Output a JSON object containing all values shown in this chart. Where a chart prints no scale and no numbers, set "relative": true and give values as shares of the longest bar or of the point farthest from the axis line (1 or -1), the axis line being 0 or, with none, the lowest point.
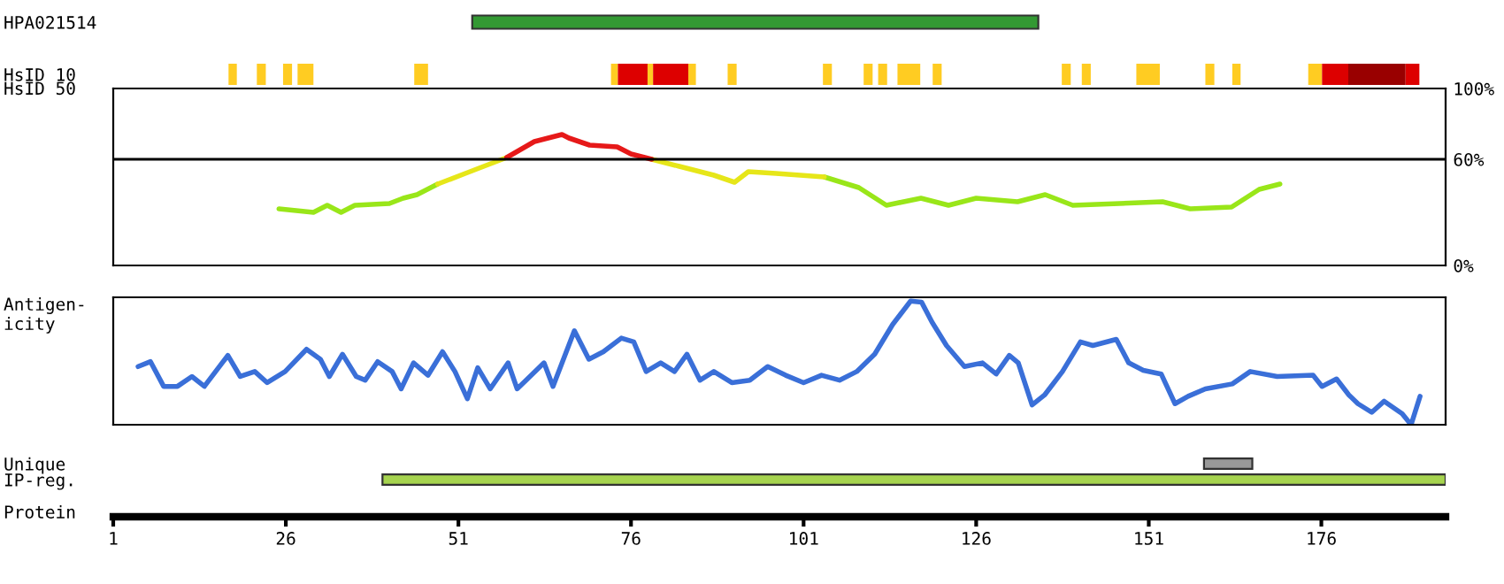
{
  "chart_data": [
    {
      "type": "bar",
      "orientation": "horizontal",
      "categories": [
        "HPA021514"
      ],
      "base": [
        53
      ],
      "values": [
        82
      ],
      "colors": [
        "#339933"
      ],
      "xlim": [
        1,
        194
      ],
      "tick_labels": "y"
    },
    {
      "type": "bar",
      "orientation": "horizontal",
      "categories": [
        "HsID 10"
      ],
      "xlim": [
        1,
        194
      ],
      "tick_labels": "y",
      "series": [
        {
          "color": "#ffcc22",
          "base": [
            17.7
          ],
          "values": [
            1.2
          ]
        },
        {
          "color": "#ffcc22",
          "base": [
            21.8
          ],
          "values": [
            1.3
          ]
        },
        {
          "color": "#ffcc22",
          "base": [
            25.6
          ],
          "values": [
            1.3
          ]
        },
        {
          "color": "#ffcc22",
          "base": [
            27.7
          ],
          "values": [
            2.3
          ]
        },
        {
          "color": "#ffcc22",
          "base": [
            44.6
          ],
          "values": [
            2.0
          ]
        },
        {
          "color": "#ffcc22",
          "base": [
            73.1
          ],
          "values": [
            1.0
          ]
        },
        {
          "color": "#dd0000",
          "base": [
            74.1
          ],
          "values": [
            4.3
          ]
        },
        {
          "color": "#ffcc22",
          "base": [
            78.4
          ],
          "values": [
            0.8
          ]
        },
        {
          "color": "#dd0000",
          "base": [
            79.2
          ],
          "values": [
            5.1
          ]
        },
        {
          "color": "#ffcc22",
          "base": [
            84.3
          ],
          "values": [
            1.1
          ]
        },
        {
          "color": "#ffcc22",
          "base": [
            90.0
          ],
          "values": [
            1.3
          ]
        },
        {
          "color": "#ffcc22",
          "base": [
            103.8
          ],
          "values": [
            1.3
          ]
        },
        {
          "color": "#ffcc22",
          "base": [
            109.7
          ],
          "values": [
            1.3
          ]
        },
        {
          "color": "#ffcc22",
          "base": [
            111.8
          ],
          "values": [
            1.3
          ]
        },
        {
          "color": "#ffcc22",
          "base": [
            114.6
          ],
          "values": [
            3.3
          ]
        },
        {
          "color": "#ffcc22",
          "base": [
            119.7
          ],
          "values": [
            1.3
          ]
        },
        {
          "color": "#ffcc22",
          "base": [
            138.4
          ],
          "values": [
            1.3
          ]
        },
        {
          "color": "#ffcc22",
          "base": [
            141.3
          ],
          "values": [
            1.3
          ]
        },
        {
          "color": "#ffcc22",
          "base": [
            149.2
          ],
          "values": [
            3.4
          ]
        },
        {
          "color": "#ffcc22",
          "base": [
            159.2
          ],
          "values": [
            1.3
          ]
        },
        {
          "color": "#ffcc22",
          "base": [
            163.1
          ],
          "values": [
            1.2
          ]
        },
        {
          "color": "#ffcc22",
          "base": [
            174.1
          ],
          "values": [
            2.0
          ]
        },
        {
          "color": "#dd0000",
          "base": [
            176.1
          ],
          "values": [
            3.8
          ]
        },
        {
          "color": "#990000",
          "base": [
            179.9
          ],
          "values": [
            8.3
          ]
        },
        {
          "color": "#dd0000",
          "base": [
            188.2
          ],
          "values": [
            2.0
          ]
        }
      ]
    },
    {
      "type": "line",
      "ylabel": "HsID 50",
      "xlim": [
        1,
        194
      ],
      "ylim": [
        0,
        100
      ],
      "yticks": [
        {
          "value": 0,
          "label": "0%"
        },
        {
          "value": 60,
          "label": "60%"
        },
        {
          "value": 100,
          "label": "100%"
        }
      ],
      "tick_labels": "y",
      "ref_lines": [
        {
          "axis": "y",
          "value": 60,
          "color": "#000000"
        }
      ],
      "x": [
        25,
        30,
        32,
        34,
        36,
        41,
        43,
        45,
        48,
        52,
        56,
        58,
        62,
        66,
        67,
        70,
        74,
        76,
        79,
        83,
        88,
        91,
        93,
        97,
        104,
        109,
        113,
        118,
        122,
        126,
        132,
        136,
        140,
        153,
        157,
        163,
        167,
        170
      ],
      "series": [
        {
          "color": "#99e619",
          "values": [
            32,
            30,
            34,
            30,
            34,
            35,
            38,
            40,
            46,
            null,
            null,
            null,
            null,
            null,
            null,
            null,
            null,
            null,
            null,
            null,
            null,
            null,
            null,
            null,
            50,
            44,
            34,
            38,
            34,
            38,
            36,
            40,
            34,
            36,
            32,
            33,
            43,
            46
          ]
        },
        {
          "color": "#e6e619",
          "values": [
            null,
            null,
            null,
            null,
            null,
            null,
            null,
            null,
            46,
            52,
            58,
            61,
            null,
            null,
            null,
            null,
            null,
            null,
            60,
            56,
            51,
            47,
            53,
            52,
            50,
            null,
            null,
            null,
            null,
            null,
            null,
            null,
            null,
            null,
            null,
            null,
            null,
            null
          ]
        },
        {
          "color": "#e61919",
          "values": [
            null,
            null,
            null,
            null,
            null,
            null,
            null,
            null,
            null,
            null,
            null,
            61,
            70,
            74,
            72,
            68,
            67,
            63,
            60,
            null,
            null,
            null,
            null,
            null,
            null,
            null,
            null,
            null,
            null,
            null,
            null,
            null,
            null,
            null,
            null,
            null,
            null,
            null
          ]
        }
      ]
    },
    {
      "type": "line",
      "relative": true,
      "ylabel": "Antigen-\nicity",
      "xlim": [
        1,
        194
      ],
      "tick_labels": false,
      "x": [
        4.6,
        6.4,
        8.3,
        10.3,
        12.4,
        14.2,
        17.6,
        19.4,
        21.5,
        23.3,
        25.9,
        29,
        31,
        32.3,
        34.2,
        36.2,
        37.5,
        39.3,
        41.4,
        42.7,
        44.5,
        46.6,
        48.7,
        50.5,
        52.3,
        53.8,
        55.6,
        58.2,
        59.5,
        60.8,
        63.4,
        64.7,
        67.8,
        69.9,
        72,
        74.6,
        76.4,
        78.2,
        80.3,
        82.3,
        84.1,
        86,
        88,
        90.6,
        93.2,
        95.8,
        98.4,
        101,
        103.6,
        106.2,
        108.7,
        111.3,
        113.9,
        116.5,
        118.1,
        119.6,
        121.7,
        124.3,
        126.9,
        128.9,
        130.8,
        132.1,
        134.1,
        135.9,
        138.5,
        141.1,
        142.9,
        146.3,
        148.1,
        150.2,
        152.8,
        154.8,
        156.7,
        159.2,
        163.1,
        165.7,
        169.6,
        174.8,
        176.1,
        178.2,
        180,
        181.3,
        183.3,
        185.1,
        187.7,
        189,
        190.3
      ],
      "series": [
        {
          "color": "#3a6fd8",
          "values": [
            0.47,
            0.51,
            0.31,
            0.31,
            0.39,
            0.31,
            0.56,
            0.39,
            0.43,
            0.34,
            0.43,
            0.61,
            0.53,
            0.39,
            0.57,
            0.39,
            0.36,
            0.51,
            0.43,
            0.29,
            0.5,
            0.4,
            0.59,
            0.43,
            0.21,
            0.46,
            0.29,
            0.5,
            0.29,
            0.36,
            0.5,
            0.31,
            0.76,
            0.53,
            0.59,
            0.7,
            0.67,
            0.43,
            0.5,
            0.43,
            0.57,
            0.36,
            0.43,
            0.34,
            0.36,
            0.47,
            0.4,
            0.34,
            0.4,
            0.36,
            0.43,
            0.57,
            0.81,
            1,
            0.99,
            0.83,
            0.64,
            0.47,
            0.5,
            0.41,
            0.56,
            0.5,
            0.16,
            0.24,
            0.43,
            0.67,
            0.64,
            0.69,
            0.5,
            0.44,
            0.41,
            0.17,
            0.23,
            0.29,
            0.33,
            0.43,
            0.39,
            0.4,
            0.31,
            0.37,
            0.24,
            0.17,
            0.1,
            0.19,
            0.09,
            0,
            0.23
          ]
        }
      ]
    },
    {
      "type": "bar",
      "orientation": "horizontal",
      "categories": [
        "Unique",
        "IP-reg."
      ],
      "base": [
        159,
        40
      ],
      "values": [
        7,
        154
      ],
      "colors": [
        "#999999",
        "#a6d44f"
      ],
      "xlim": [
        1,
        194
      ],
      "xticks": [
        1,
        26,
        51,
        76,
        101,
        126,
        151,
        176
      ],
      "xlabel": "Protein"
    }
  ]
}
